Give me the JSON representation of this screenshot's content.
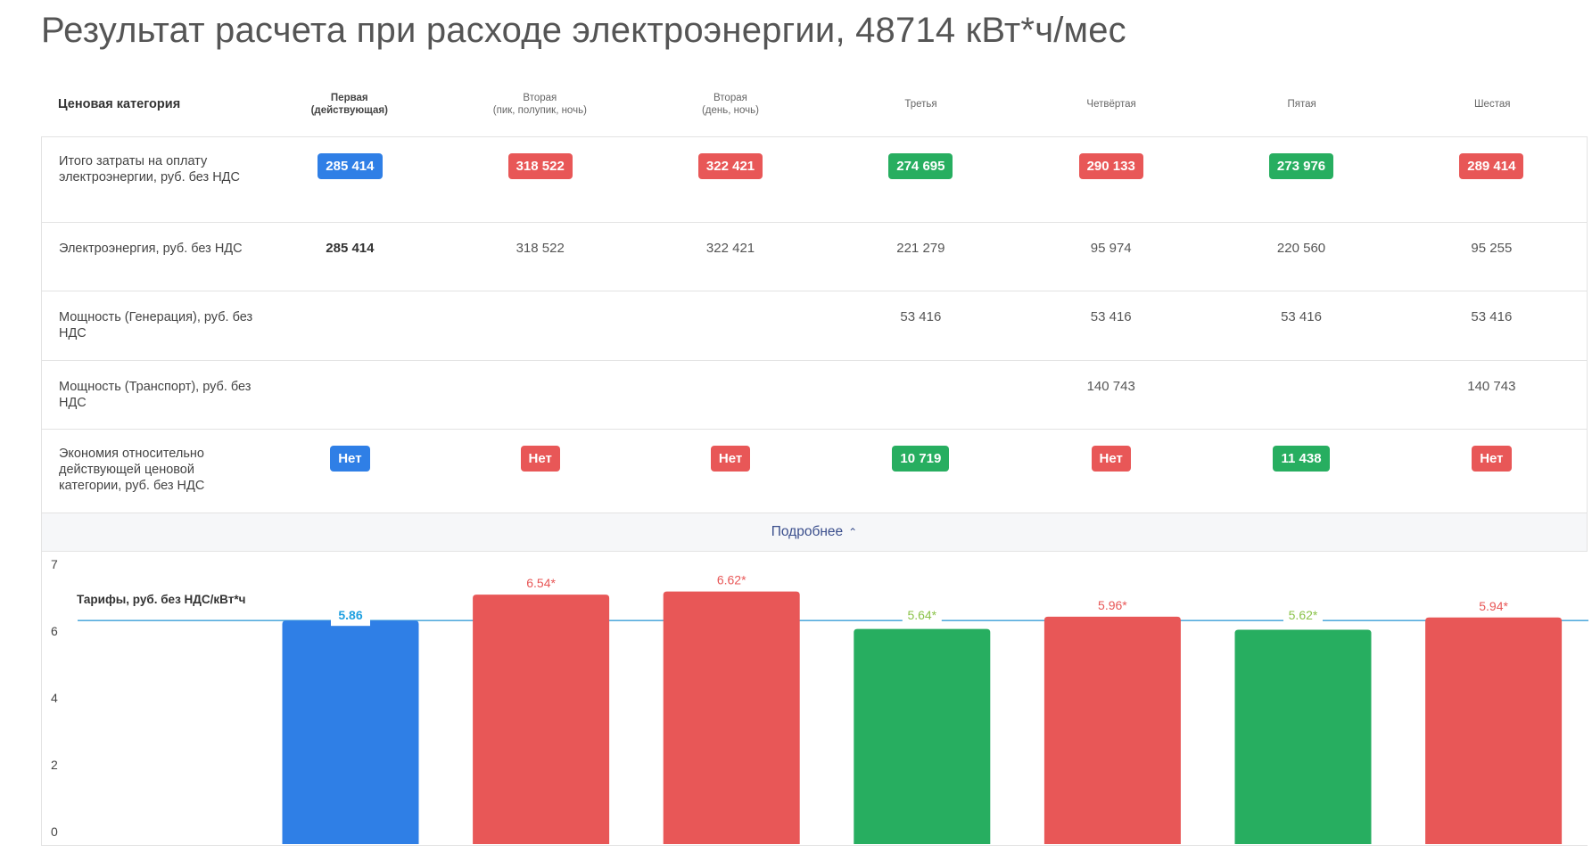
{
  "title": "Результат расчета при расходе электроэнергии, 48714 кВт*ч/мес",
  "table": {
    "header_label": "Ценовая категория",
    "columns": [
      {
        "line1": "Первая",
        "line2": "(действующая)"
      },
      {
        "line1": "Вторая",
        "line2": "(пик, полупик, ночь)"
      },
      {
        "line1": "Вторая",
        "line2": "(день, ночь)"
      },
      {
        "line1": "Третья",
        "line2": ""
      },
      {
        "line1": "Четвёртая",
        "line2": ""
      },
      {
        "line1": "Пятая",
        "line2": ""
      },
      {
        "line1": "Шестая",
        "line2": ""
      }
    ],
    "rows": [
      {
        "label": "Итого затраты на оплату электроэнергии, руб. без НДС",
        "type": "badge",
        "values": [
          "285 414",
          "318 522",
          "322 421",
          "274 695",
          "290 133",
          "273 976",
          "289 414"
        ],
        "colors": [
          "blue",
          "red",
          "red",
          "green",
          "red",
          "green",
          "red"
        ]
      },
      {
        "label": "Электроэнергия, руб. без НДС",
        "type": "text",
        "values": [
          "285 414",
          "318 522",
          "322 421",
          "221 279",
          "95 974",
          "220 560",
          "95 255"
        ]
      },
      {
        "label": "Мощность (Генерация), руб. без НДС",
        "type": "text",
        "values": [
          "",
          "",
          "",
          "53 416",
          "53 416",
          "53 416",
          "53 416"
        ]
      },
      {
        "label": "Мощность (Транспорт), руб. без НДС",
        "type": "text",
        "values": [
          "",
          "",
          "",
          "",
          "140 743",
          "",
          "140 743"
        ]
      },
      {
        "label": "Экономия относительно действующей ценовой категории, руб. без НДС",
        "type": "badge",
        "values": [
          "Нет",
          "Нет",
          "Нет",
          "10 719",
          "Нет",
          "11 438",
          "Нет"
        ],
        "colors": [
          "blue",
          "red",
          "red",
          "green",
          "red",
          "green",
          "red"
        ]
      }
    ]
  },
  "more_button": {
    "label": "Подробнее",
    "icon": "chevron-up-icon"
  },
  "colors": {
    "blue": "#2f7fe6",
    "red": "#e85757",
    "green": "#27ae60",
    "line": "#3a9fd8",
    "label_blue": "#1fa0e0",
    "label_green": "#8bc34a"
  },
  "chart_data": {
    "type": "bar",
    "title": "Тарифы, руб. без НДС/кВт*ч",
    "y_ticks": [
      "7",
      "6",
      "4",
      "2",
      "0"
    ],
    "values": [
      5.86,
      6.54,
      6.62,
      5.64,
      5.96,
      5.62,
      5.94
    ],
    "labels": [
      "5.86",
      "6.54*",
      "6.62*",
      "5.64*",
      "5.96*",
      "5.62*",
      "5.94*"
    ],
    "colors": [
      "blue",
      "red",
      "red",
      "green",
      "red",
      "green",
      "red"
    ],
    "reference_line": 5.86
  }
}
